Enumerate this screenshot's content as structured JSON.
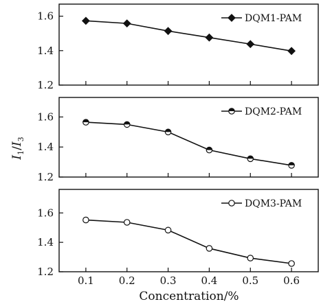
{
  "chart_data": {
    "type": "line",
    "xlabel": "Concentration/%",
    "ylabel": "I1/I3",
    "x": [
      0.1,
      0.2,
      0.3,
      0.4,
      0.5,
      0.6
    ],
    "x_tick_labels": [
      "0.1",
      "0.2",
      "0.3",
      "0.4",
      "0.5",
      "0.6"
    ],
    "panels": [
      {
        "series_name": "DQM1-PAM",
        "marker": "filled-diamond",
        "values": [
          1.573,
          1.558,
          1.514,
          1.476,
          1.438,
          1.398
        ],
        "ylim": [
          1.2,
          1.67
        ],
        "y_ticks": [
          1.2,
          1.4,
          1.6
        ],
        "y_tick_labels": [
          "1.2",
          "1.4",
          "1.6"
        ]
      },
      {
        "series_name": "DQM2-PAM",
        "marker": "half-filled-circle",
        "values": [
          1.565,
          1.55,
          1.5,
          1.38,
          1.322,
          1.278
        ],
        "ylim": [
          1.2,
          1.73
        ],
        "y_ticks": [
          1.2,
          1.4,
          1.6
        ],
        "y_tick_labels": [
          "1.2",
          "1.4",
          "1.6"
        ]
      },
      {
        "series_name": "DQM3-PAM",
        "marker": "open-circle",
        "values": [
          1.552,
          1.536,
          1.483,
          1.359,
          1.293,
          1.256
        ],
        "ylim": [
          1.2,
          1.76
        ],
        "y_ticks": [
          1.2,
          1.4,
          1.6
        ],
        "y_tick_labels": [
          "1.2",
          "1.4",
          "1.6"
        ]
      }
    ],
    "xlim": [
      0.035,
      0.665
    ],
    "grid": false,
    "legend_position": "top-right",
    "colors": {
      "line": "#111111",
      "marker_fill": "#111111",
      "background": "#ffffff"
    }
  }
}
